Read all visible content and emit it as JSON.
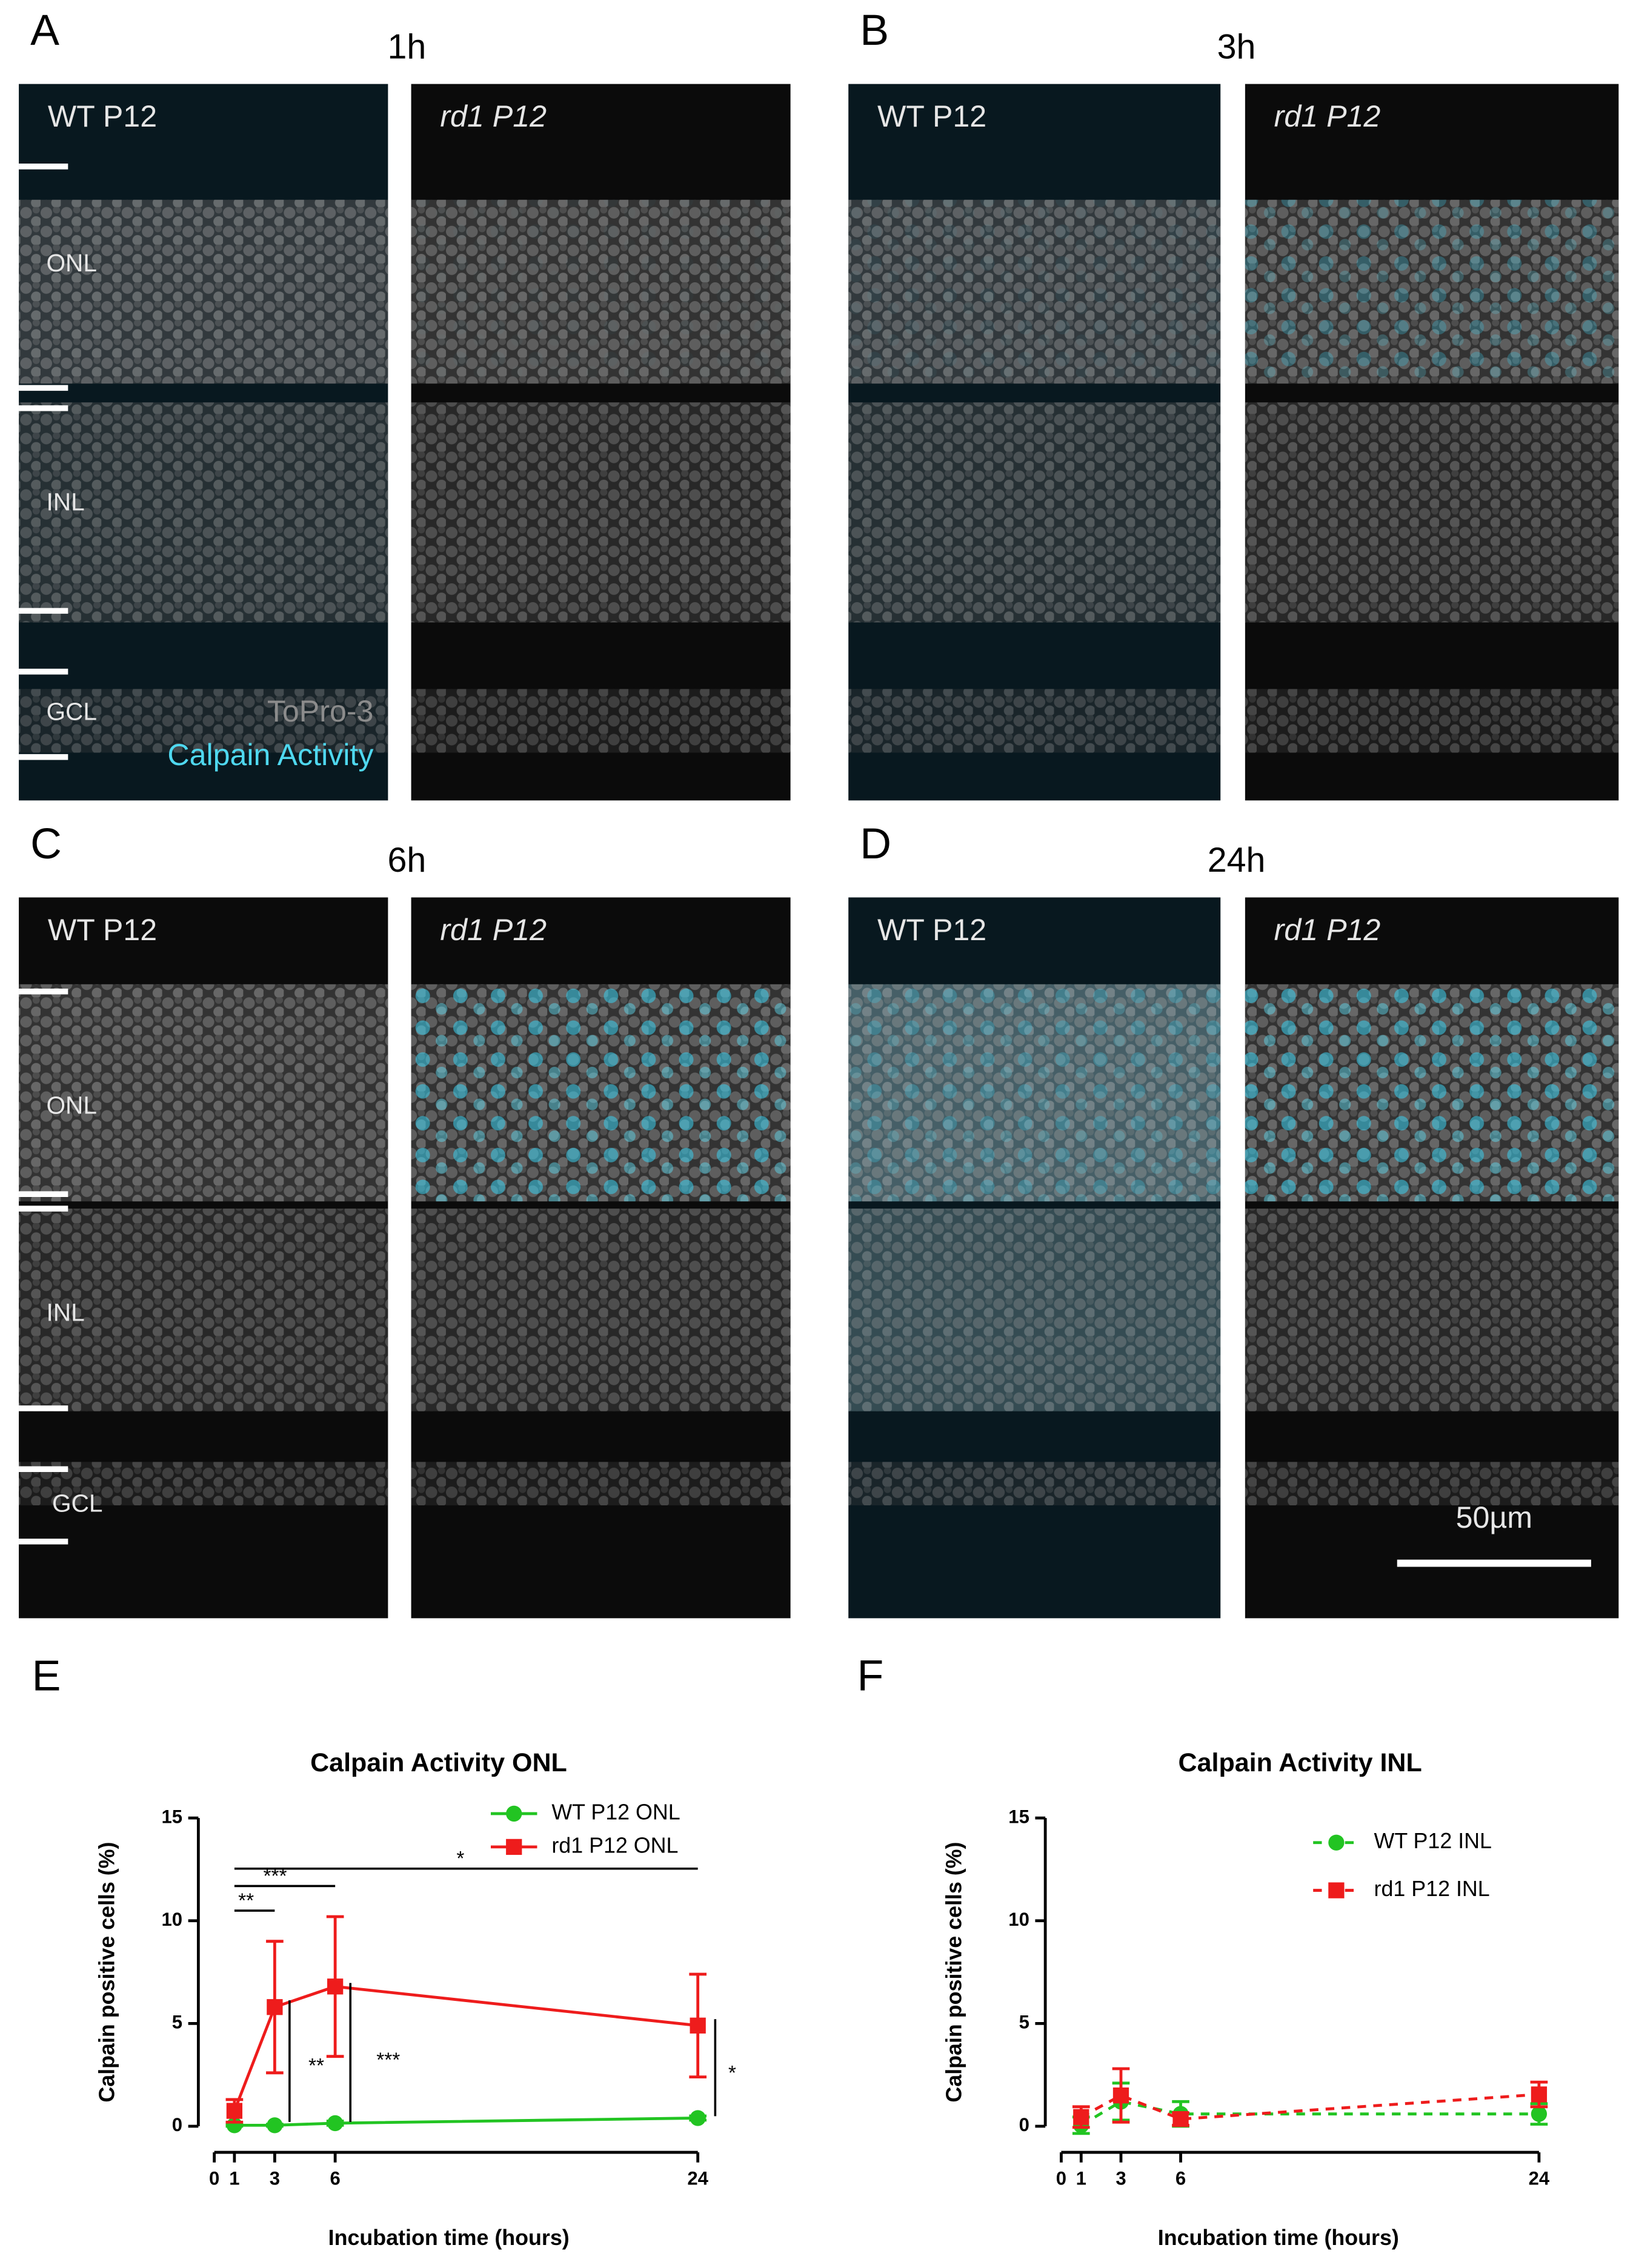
{
  "panels": [
    {
      "letter": "A",
      "time": "1h",
      "left": "WT P12",
      "right": "rd1 P12"
    },
    {
      "letter": "B",
      "time": "3h",
      "left": "WT P12",
      "right": "rd1 P12"
    },
    {
      "letter": "C",
      "time": "6h",
      "left": "WT P12",
      "right": "rd1 P12"
    },
    {
      "letter": "D",
      "time": "24h",
      "left": "WT P12",
      "right": "rd1 P12"
    }
  ],
  "layers": [
    "ONL",
    "INL",
    "GCL"
  ],
  "stain_labels": [
    "ToPro-3",
    "Calpain Activity"
  ],
  "scale_bar": "50µm",
  "chart_data": [
    {
      "type": "line",
      "label": "E",
      "title": "Calpain Activity ONL",
      "xlabel": "Incubation time (hours)",
      "ylabel": "Calpain positive cells (%)",
      "x": [
        1,
        3,
        6,
        24
      ],
      "xlim": [
        0,
        24
      ],
      "xticks": [
        0,
        1,
        3,
        6,
        24
      ],
      "ylim": [
        0,
        15
      ],
      "yticks": [
        0,
        5,
        10,
        15
      ],
      "legend": "upper right",
      "series": [
        {
          "name": "WT P12 ONL",
          "color": "#22c422",
          "marker": "circle",
          "linestyle": "solid",
          "values": [
            0.05,
            0.05,
            0.15,
            0.4
          ],
          "errors": [
            0.05,
            0.05,
            0.1,
            0.1
          ]
        },
        {
          "name": "rd1 P12 ONL",
          "color": "#ee1c1c",
          "marker": "square",
          "linestyle": "solid",
          "values": [
            0.75,
            5.8,
            6.8,
            4.9
          ],
          "errors": [
            0.55,
            3.2,
            3.4,
            2.5
          ]
        }
      ],
      "annotations": [
        "**",
        "***",
        "*",
        "**",
        "***",
        "*"
      ]
    },
    {
      "type": "line",
      "label": "F",
      "title": "Calpain Activity INL",
      "xlabel": "Incubation time (hours)",
      "ylabel": "Calpain positive cells (%)",
      "x": [
        1,
        3,
        6,
        24
      ],
      "xlim": [
        0,
        24
      ],
      "xticks": [
        0,
        1,
        3,
        6,
        24
      ],
      "ylim": [
        0,
        15
      ],
      "yticks": [
        0,
        5,
        10,
        15
      ],
      "legend": "upper right",
      "series": [
        {
          "name": "WT P12 INL",
          "color": "#22c422",
          "marker": "circle",
          "linestyle": "dashed",
          "values": [
            0.05,
            1.2,
            0.6,
            0.6
          ],
          "errors": [
            0.4,
            0.9,
            0.6,
            0.5
          ]
        },
        {
          "name": "rd1 P12 INL",
          "color": "#ee1c1c",
          "marker": "square",
          "linestyle": "dashed",
          "values": [
            0.45,
            1.5,
            0.35,
            1.55
          ],
          "errors": [
            0.5,
            1.3,
            0.3,
            0.6
          ]
        }
      ]
    }
  ]
}
